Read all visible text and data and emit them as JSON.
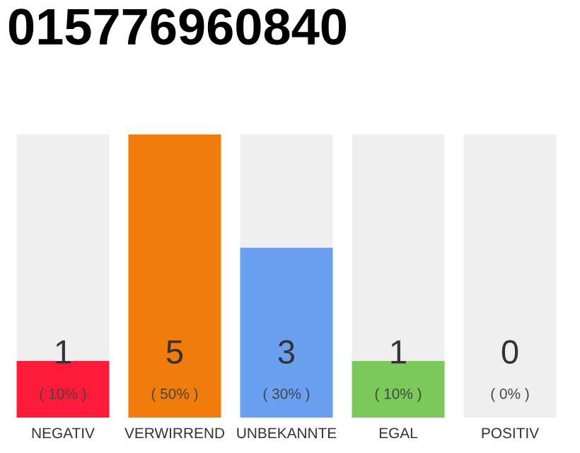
{
  "chart_data": {
    "type": "bar",
    "title": "015776960840",
    "stacked": true,
    "categories": [
      "NEGATIV",
      "VERWIRREND",
      "UNBEKANNTE",
      "EGAL",
      "POSITIV"
    ],
    "series": [
      {
        "colors": [
          "#ff1a3c",
          "#f07d0b",
          "#6aa0f0",
          "#7ac95a",
          "#cccccc"
        ],
        "values": [
          1,
          5,
          3,
          1,
          0
        ],
        "value_labels": [
          "1\n( 10% )",
          "5\n( 50% )",
          "3\n( 30% )",
          "1\n( 10% )",
          null
        ]
      },
      {
        "color": "#efefef",
        "values": [
          4,
          0,
          2,
          4,
          5
        ]
      }
    ],
    "annotations": [
      {
        "text": "0\n( 0% )",
        "x": "POSITIV",
        "y": 0
      }
    ],
    "ylim": [
      0,
      5
    ],
    "tick_labels": "x"
  }
}
